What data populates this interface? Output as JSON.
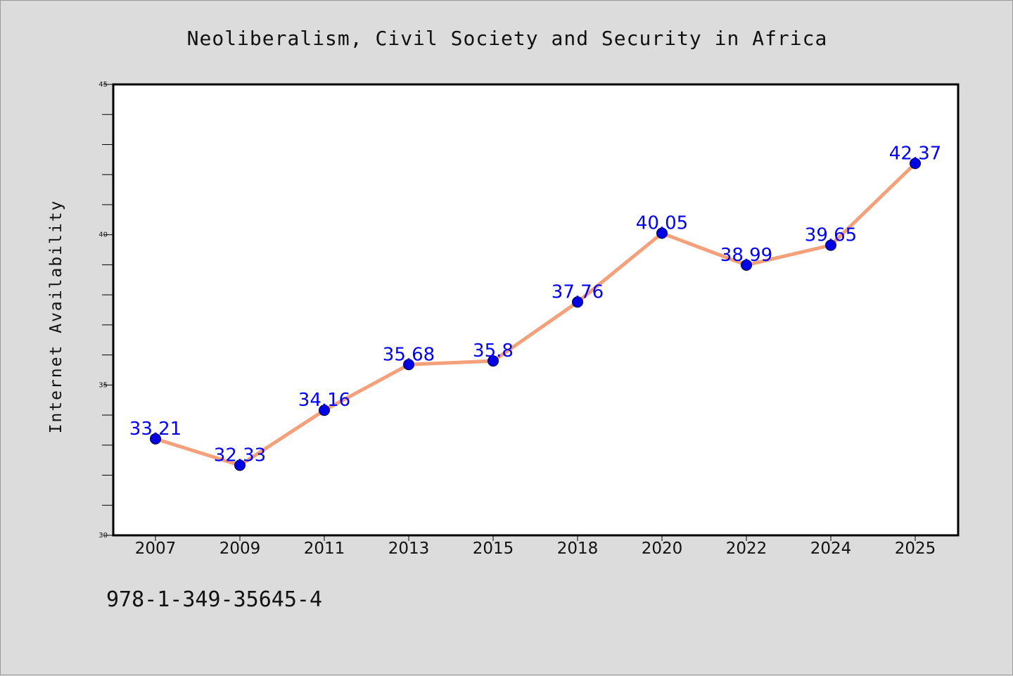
{
  "chart_data": {
    "type": "line",
    "title": "Neoliberalism, Civil Society and Security in Africa",
    "xlabel": "",
    "ylabel": "Internet Availability",
    "categories": [
      "2007",
      "2009",
      "2011",
      "2013",
      "2015",
      "2018",
      "2020",
      "2022",
      "2024",
      "2025"
    ],
    "series": [
      {
        "values": [
          33.21,
          32.33,
          34.16,
          35.68,
          35.8,
          37.76,
          40.05,
          38.99,
          39.65,
          42.37
        ],
        "labels": [
          "33.21",
          "32.33",
          "34.16",
          "35.68",
          "35.8",
          "37.76",
          "40.05",
          "38.99",
          "39.65",
          "42.37"
        ]
      }
    ],
    "ylim": [
      30,
      45
    ],
    "yticks": [
      "30",
      "35",
      "40",
      "45"
    ],
    "grid": false,
    "legend": "none",
    "line_color": "#f4a07a",
    "marker_color": "#0000e6",
    "label_color": "#0000ff",
    "plot_background": "#ffffff"
  },
  "footer": {
    "identifier": "978-1-349-35645-4"
  }
}
